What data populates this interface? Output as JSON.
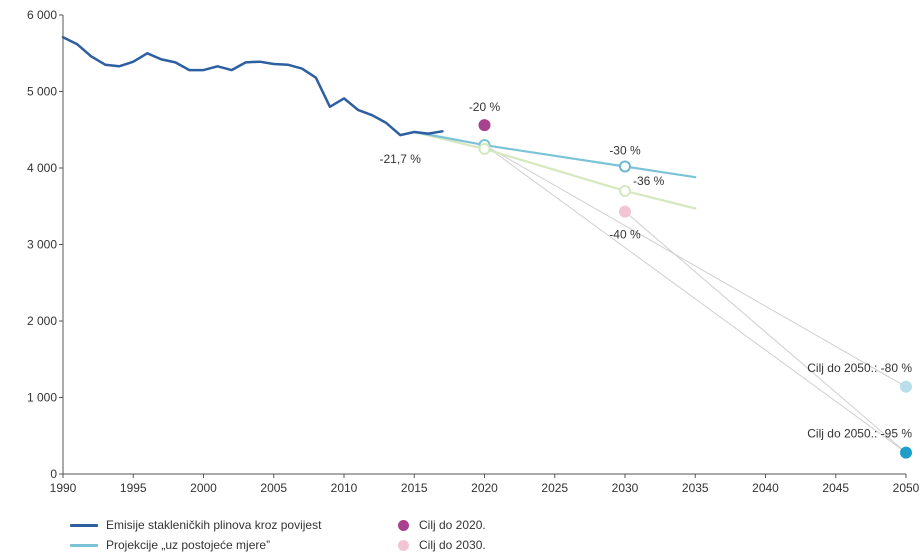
{
  "chart_data": {
    "type": "line",
    "title": "",
    "xlabel": "",
    "ylabel": "",
    "xlim": [
      1990,
      2050
    ],
    "ylim": [
      0,
      6000
    ],
    "x_ticks": [
      "1990",
      "1995",
      "2000",
      "2005",
      "2010",
      "2015",
      "2020",
      "2025",
      "2030",
      "2035",
      "2040",
      "2045",
      "2050"
    ],
    "y_ticks": [
      "0",
      "1 000",
      "2 000",
      "3 000",
      "4 000",
      "5 000",
      "6 000"
    ],
    "grid": false,
    "legend_position": "bottom-left",
    "series": [
      {
        "name": "Emisije stakleničkih plinova kroz povijest",
        "color": "#2e5fa0",
        "points": [
          [
            1990,
            5710
          ],
          [
            1991,
            5620
          ],
          [
            1992,
            5460
          ],
          [
            1993,
            5350
          ],
          [
            1994,
            5330
          ],
          [
            1995,
            5390
          ],
          [
            1996,
            5500
          ],
          [
            1997,
            5420
          ],
          [
            1998,
            5380
          ],
          [
            1999,
            5280
          ],
          [
            2000,
            5280
          ],
          [
            2001,
            5330
          ],
          [
            2002,
            5280
          ],
          [
            2003,
            5380
          ],
          [
            2004,
            5390
          ],
          [
            2005,
            5360
          ],
          [
            2006,
            5350
          ],
          [
            2007,
            5300
          ],
          [
            2008,
            5180
          ],
          [
            2009,
            4800
          ],
          [
            2010,
            4910
          ],
          [
            2011,
            4760
          ],
          [
            2012,
            4690
          ],
          [
            2013,
            4590
          ],
          [
            2014,
            4430
          ],
          [
            2015,
            4470
          ],
          [
            2016,
            4450
          ],
          [
            2017,
            4480
          ]
        ]
      },
      {
        "name": "Projekcije „uz postojeće mjere”",
        "color": "#7cc3d8",
        "points": [
          [
            2015,
            4470
          ],
          [
            2020,
            4300
          ],
          [
            2030,
            4020
          ],
          [
            2035,
            3880
          ]
        ]
      },
      {
        "name": "",
        "color": "#d5e8bf",
        "points": [
          [
            2015,
            4470
          ],
          [
            2020,
            4250
          ],
          [
            2030,
            3700
          ],
          [
            2035,
            3470
          ]
        ]
      }
    ],
    "targets": [
      {
        "name": "Cilj do 2020.",
        "x": 2020,
        "y": 4560,
        "color": "#a8418e",
        "label": "-20 %"
      },
      {
        "name": "Cilj do 2030.",
        "x": 2030,
        "y": 3430,
        "color": "#f2c4d4",
        "label": "-40 %"
      },
      {
        "x": 2050,
        "y": 1140,
        "color": "#b9dfea",
        "label": "Cilj do 2050.: -80 %"
      },
      {
        "x": 2050,
        "y": 280,
        "color": "#1f9ec9",
        "label": "Cilj do 2050.: -95 %"
      }
    ],
    "open_markers": [
      {
        "x": 2020,
        "y": 4300,
        "color": "#7cc3d8"
      },
      {
        "x": 2020,
        "y": 4250,
        "color": "#d5e8bf"
      },
      {
        "x": 2030,
        "y": 4020,
        "color": "#6fb8cf",
        "label": "-30 %"
      },
      {
        "x": 2030,
        "y": 3700,
        "color": "#d5e8bf",
        "label": "-36 %"
      }
    ],
    "annotations": [
      {
        "x": 2014,
        "y": 4300,
        "text": "-21,7 %"
      }
    ],
    "target_trend_lines": [
      [
        [
          2020,
          4300
        ],
        [
          2050,
          1140
        ]
      ],
      [
        [
          2020,
          4300
        ],
        [
          2050,
          280
        ]
      ],
      [
        [
          2030,
          3430
        ],
        [
          2050,
          280
        ]
      ]
    ]
  },
  "legend": {
    "left": [
      {
        "label": "Emisije stakleničkih plinova kroz povijest",
        "color": "#2e5fa0"
      },
      {
        "label": "Projekcije „uz postojeće mjere”",
        "color": "#7cc3d8"
      }
    ],
    "right": [
      {
        "label": "Cilj do 2020.",
        "color": "#a8418e"
      },
      {
        "label": "Cilj do 2030.",
        "color": "#f2c4d4"
      }
    ]
  }
}
